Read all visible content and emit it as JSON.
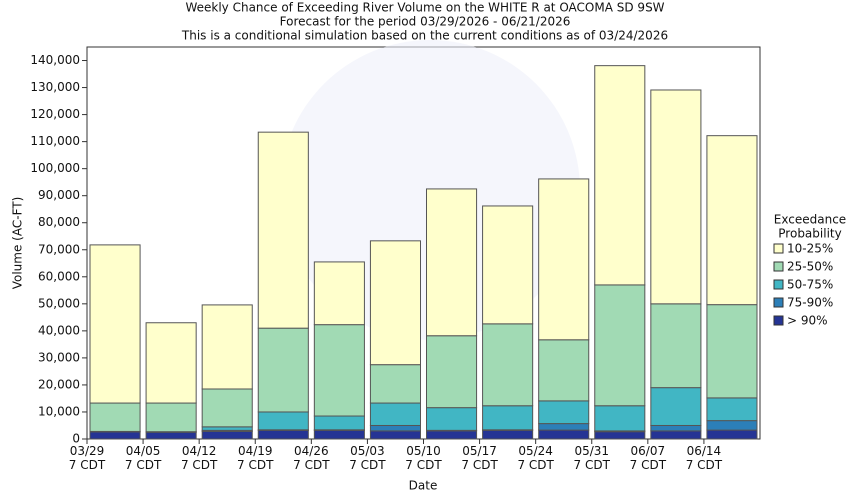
{
  "chart_data": {
    "type": "bar",
    "stacked": true,
    "title": "Weekly Chance of Exceeding River Volume on the WHITE R at OACOMA SD 9SW",
    "subtitle": "Forecast for the period 03/29/2026 - 06/21/2026",
    "note": "This is a conditional simulation based on the current conditions as of 03/24/2026",
    "x_label": "Date",
    "y_label": "Volume (AC-FT)",
    "legend_title": [
      "Exceedance",
      "Probability"
    ],
    "legend_position": "right",
    "categories": [
      "03/29 7 CDT",
      "04/05 7 CDT",
      "04/12 7 CDT",
      "04/19 7 CDT",
      "04/26 7 CDT",
      "05/03 7 CDT",
      "05/10 7 CDT",
      "05/17 7 CDT",
      "05/24 7 CDT",
      "05/31 7 CDT",
      "06/07 7 CDT",
      "06/14 7 CDT"
    ],
    "series": [
      {
        "name": "> 90%",
        "color": "#253494",
        "values": [
          2600,
          2500,
          2800,
          3200,
          3200,
          3000,
          3000,
          3200,
          3300,
          2700,
          3000,
          3300
        ]
      },
      {
        "name": "75-90%",
        "color": "#2c7fb8",
        "values": [
          100,
          100,
          400,
          200,
          200,
          2000,
          200,
          200,
          2400,
          300,
          2000,
          3500
        ]
      },
      {
        "name": "50-75%",
        "color": "#41b6c4",
        "values": [
          100,
          100,
          1300,
          6600,
          5100,
          8300,
          8400,
          8900,
          8400,
          9300,
          14000,
          8400
        ]
      },
      {
        "name": "25-50%",
        "color": "#a1dab4",
        "values": [
          10500,
          10600,
          14000,
          31000,
          33800,
          14200,
          26600,
          30300,
          22600,
          44700,
          31000,
          34500
        ]
      },
      {
        "name": "10-25%",
        "color": "#ffffcc",
        "values": [
          58500,
          29700,
          31100,
          72500,
          23200,
          45800,
          54300,
          43600,
          59500,
          81100,
          79100,
          62500
        ]
      }
    ],
    "ylim": [
      0,
      145000
    ],
    "yticks": [
      0,
      {
        "value": 10000,
        "label": "10,000"
      },
      {
        "value": 20000,
        "label": "20,000"
      },
      {
        "value": 30000,
        "label": "30,000"
      },
      {
        "value": 40000,
        "label": "40,000"
      },
      {
        "value": 50000,
        "label": "50,000"
      },
      {
        "value": 60000,
        "label": "60,000"
      },
      {
        "value": 70000,
        "label": "70,000"
      },
      {
        "value": 80000,
        "label": "80,000"
      },
      {
        "value": 90000,
        "label": "90,000"
      },
      {
        "value": 100000,
        "label": "100,000"
      },
      {
        "value": 110000,
        "label": "110,000"
      },
      {
        "value": 120000,
        "label": "120,000"
      },
      {
        "value": 130000,
        "label": "130,000"
      },
      {
        "value": 140000,
        "label": "140,000"
      }
    ],
    "grid": false
  }
}
